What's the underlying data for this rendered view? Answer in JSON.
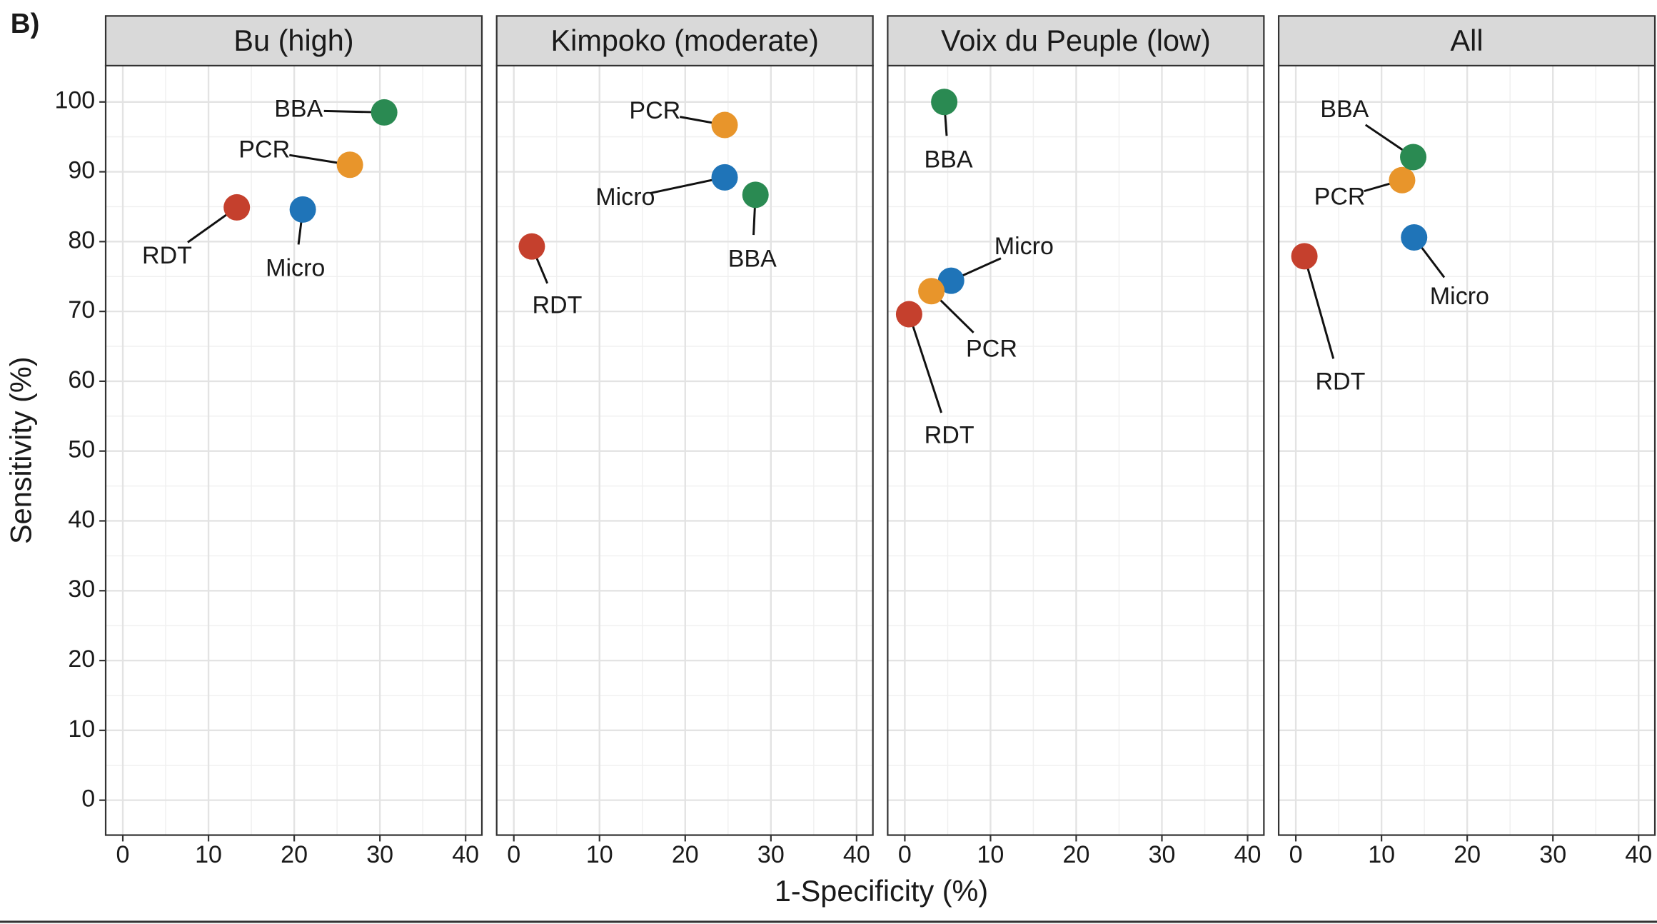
{
  "panel_label": "B)",
  "xlabel": "1-Specificity (%)",
  "ylabel": "Sensitivity (%)",
  "chart_data": [
    {
      "type": "scatter",
      "title": "Bu (high)",
      "xlim": [
        -2,
        41.9
      ],
      "ylim": [
        -5,
        105.2
      ],
      "xticks": [
        0,
        10,
        20,
        30,
        40
      ],
      "yticks": [
        0,
        10,
        20,
        30,
        40,
        50,
        60,
        70,
        80,
        90,
        100
      ],
      "grid": true,
      "series": [
        {
          "name": "RDT",
          "color": "#c5402d",
          "x": [
            13.3
          ],
          "y": [
            84.9
          ]
        },
        {
          "name": "Micro",
          "color": "#1f74b8",
          "x": [
            21
          ],
          "y": [
            84.6
          ]
        },
        {
          "name": "PCR",
          "color": "#e8952b",
          "x": [
            26.5
          ],
          "y": [
            91
          ]
        },
        {
          "name": "BBA",
          "color": "#2a8a52",
          "x": [
            30.5
          ],
          "y": [
            98.5
          ]
        }
      ]
    },
    {
      "type": "scatter",
      "title": "Kimpoko (moderate)",
      "xlim": [
        -2,
        41.9
      ],
      "ylim": [
        -5,
        105.2
      ],
      "xticks": [
        0,
        10,
        20,
        30,
        40
      ],
      "yticks": [
        0,
        10,
        20,
        30,
        40,
        50,
        60,
        70,
        80,
        90,
        100
      ],
      "grid": true,
      "series": [
        {
          "name": "RDT",
          "color": "#c5402d",
          "x": [
            2.1
          ],
          "y": [
            79.3
          ]
        },
        {
          "name": "Micro",
          "color": "#1f74b8",
          "x": [
            24.6
          ],
          "y": [
            89.2
          ]
        },
        {
          "name": "PCR",
          "color": "#e8952b",
          "x": [
            24.6
          ],
          "y": [
            96.7
          ]
        },
        {
          "name": "BBA",
          "color": "#2a8a52",
          "x": [
            28.2
          ],
          "y": [
            86.7
          ]
        }
      ]
    },
    {
      "type": "scatter",
      "title": "Voix du Peuple (low)",
      "xlim": [
        -2,
        41.9
      ],
      "ylim": [
        -5,
        105.2
      ],
      "xticks": [
        0,
        10,
        20,
        30,
        40
      ],
      "yticks": [
        0,
        10,
        20,
        30,
        40,
        50,
        60,
        70,
        80,
        90,
        100
      ],
      "grid": true,
      "series": [
        {
          "name": "RDT",
          "color": "#c5402d",
          "x": [
            0.5
          ],
          "y": [
            69.6
          ]
        },
        {
          "name": "Micro",
          "color": "#1f74b8",
          "x": [
            5.4
          ],
          "y": [
            74.4
          ]
        },
        {
          "name": "PCR",
          "color": "#e8952b",
          "x": [
            3.1
          ],
          "y": [
            72.9
          ]
        },
        {
          "name": "BBA",
          "color": "#2a8a52",
          "x": [
            4.6
          ],
          "y": [
            100
          ]
        }
      ]
    },
    {
      "type": "scatter",
      "title": "All",
      "xlim": [
        -2,
        41.9
      ],
      "ylim": [
        -5,
        105.2
      ],
      "xticks": [
        0,
        10,
        20,
        30,
        40
      ],
      "yticks": [
        0,
        10,
        20,
        30,
        40,
        50,
        60,
        70,
        80,
        90,
        100
      ],
      "grid": true,
      "series": [
        {
          "name": "RDT",
          "color": "#c5402d",
          "x": [
            1
          ],
          "y": [
            77.9
          ]
        },
        {
          "name": "Micro",
          "color": "#1f74b8",
          "x": [
            13.8
          ],
          "y": [
            80.6
          ]
        },
        {
          "name": "PCR",
          "color": "#e8952b",
          "x": [
            12.4
          ],
          "y": [
            88.8
          ]
        },
        {
          "name": "BBA",
          "color": "#2a8a52",
          "x": [
            13.7
          ],
          "y": [
            92.1
          ]
        }
      ]
    }
  ]
}
